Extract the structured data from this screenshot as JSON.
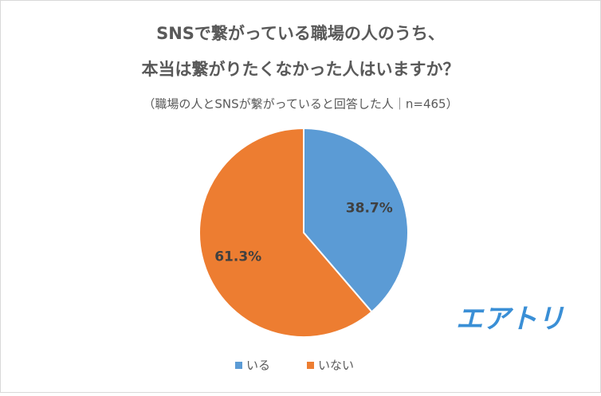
{
  "chart_data": {
    "type": "pie",
    "title": [
      "SNSで繋がっている職場の人のうち、",
      "本当は繋がりたくなかった人はいますか？"
    ],
    "subtitle": "（職場の人とSNSが繋がっていると回答した人｜n=465）",
    "categories": [
      "いる",
      "いない"
    ],
    "values": [
      38.7,
      61.3
    ],
    "value_labels": [
      "38.7%",
      "61.3%"
    ],
    "colors": [
      "#5b9bd5",
      "#ed7d31"
    ],
    "legend": "bottom",
    "watermark": "エアトリ"
  }
}
